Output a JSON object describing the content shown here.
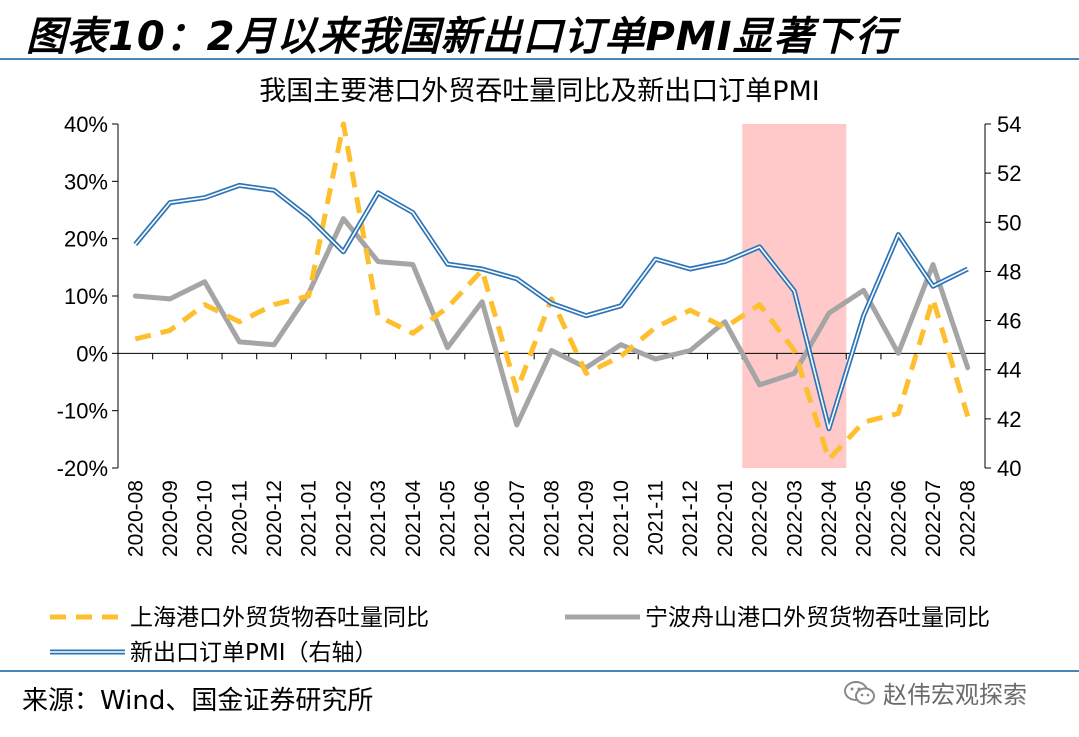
{
  "header": {
    "figure_title": "图表10：2月以来我国新出口订单PMI显著下行"
  },
  "footer": {
    "source": "来源：Wind、国金证券研究所",
    "watermark": "赵伟宏观探索",
    "watermark_icon": "wechat-icon"
  },
  "colors": {
    "shanghai": "#fdbf2d",
    "ningbo": "#a5a5a5",
    "pmi_outer": "#2e75b6",
    "pmi_inner": "#ffffff",
    "highlight": "#ffc9c9",
    "rule": "#4a86b5"
  },
  "chart_data": {
    "type": "line",
    "title": "我国主要港口外贸吞吐量同比及新出口订单PMI",
    "x": [
      "2020-08",
      "2020-09",
      "2020-10",
      "2020-11",
      "2020-12",
      "2021-01",
      "2021-02",
      "2021-03",
      "2021-04",
      "2021-05",
      "2021-06",
      "2021-07",
      "2021-08",
      "2021-09",
      "2021-10",
      "2021-11",
      "2021-12",
      "2022-01",
      "2022-02",
      "2022-03",
      "2022-04",
      "2022-05",
      "2022-06",
      "2022-07",
      "2022-08"
    ],
    "y_left": {
      "min": -20,
      "max": 40,
      "step": 10,
      "ticks": [
        "-20%",
        "-10%",
        "0%",
        "10%",
        "20%",
        "30%",
        "40%"
      ]
    },
    "y_right": {
      "min": 40,
      "max": 54,
      "step": 2,
      "ticks": [
        "40",
        "42",
        "44",
        "46",
        "48",
        "50",
        "52",
        "54"
      ]
    },
    "highlight_range": [
      "2022-02",
      "2022-04"
    ],
    "legend_position": "bottom",
    "series": [
      {
        "name": "上海港口外贸货物吞吐量同比",
        "axis": "left",
        "style": "dashed",
        "values": [
          2.5,
          4.0,
          8.5,
          5.5,
          8.5,
          10.0,
          40.0,
          6.5,
          3.5,
          8.0,
          14.5,
          -6.5,
          9.5,
          -3.5,
          -0.5,
          4.5,
          7.5,
          4.5,
          8.5,
          0.5,
          -18.5,
          -12.0,
          -10.5,
          9.5,
          -11.0
        ]
      },
      {
        "name": "宁波舟山港口外贸货物吞吐量同比",
        "axis": "left",
        "style": "solid-thick",
        "values": [
          10.0,
          9.5,
          12.5,
          2.0,
          1.5,
          10.5,
          23.5,
          16.0,
          15.5,
          1.0,
          9.0,
          -12.5,
          0.5,
          -2.5,
          1.5,
          -1.0,
          0.5,
          5.5,
          -5.5,
          -3.5,
          7.0,
          11.0,
          0.0,
          15.5,
          -2.5
        ]
      },
      {
        "name": "新出口订单PMI（右轴）",
        "axis": "right",
        "style": "double",
        "values": [
          49.1,
          50.8,
          51.0,
          51.5,
          51.3,
          50.2,
          48.8,
          51.2,
          50.4,
          48.3,
          48.1,
          47.7,
          46.7,
          46.2,
          46.6,
          48.5,
          48.1,
          48.4,
          49.0,
          47.2,
          41.6,
          46.2,
          49.5,
          47.4,
          48.1
        ]
      }
    ]
  }
}
